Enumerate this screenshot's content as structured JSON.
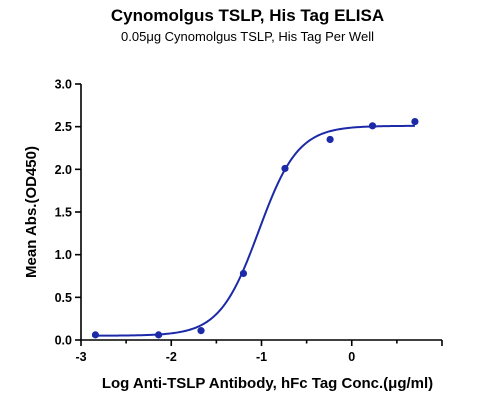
{
  "chart_data": {
    "type": "scatter",
    "title": "Cynomolgus TSLP, His Tag ELISA",
    "subtitle": "0.05μg Cynomolgus TSLP, His Tag Per Well",
    "xlabel": "Log Anti-TSLP Antibody, hFc Tag Conc.(μg/ml)",
    "ylabel": "Mean Abs.(OD450)",
    "xlim": [
      -3,
      1
    ],
    "ylim": [
      0,
      3
    ],
    "xticks": [
      "-3",
      "-2",
      "-1",
      "0"
    ],
    "yticks": [
      "0.0",
      "0.5",
      "1.0",
      "1.5",
      "2.0",
      "2.5",
      "3.0"
    ],
    "grid": false,
    "legend": "none",
    "color": "#1c2aa8",
    "series": [
      {
        "points": [
          {
            "x": -2.84,
            "y": 0.06
          },
          {
            "x": -2.14,
            "y": 0.06
          },
          {
            "x": -1.67,
            "y": 0.11
          },
          {
            "x": -1.2,
            "y": 0.78
          },
          {
            "x": -0.74,
            "y": 2.01
          },
          {
            "x": -0.24,
            "y": 2.35
          },
          {
            "x": 0.23,
            "y": 2.51
          },
          {
            "x": 0.7,
            "y": 2.56
          }
        ],
        "fit": {
          "model": "4PL",
          "bottom": 0.05,
          "top": 2.51,
          "logEC50": -1.03,
          "hill": 2.0
        }
      }
    ]
  }
}
